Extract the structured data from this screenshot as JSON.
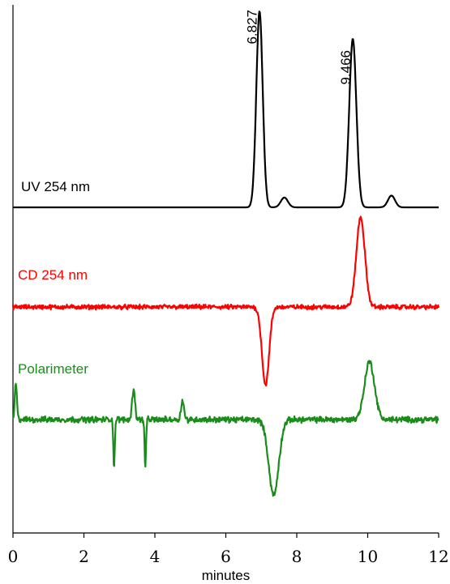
{
  "chart_data": {
    "type": "line",
    "xlabel": "minutes",
    "xlim": [
      0,
      12
    ],
    "x_ticks": [
      "0",
      "2",
      "4",
      "6",
      "8",
      "10",
      "12"
    ],
    "grid": false,
    "legend": "none",
    "peak_labels": [
      {
        "text": "6.827",
        "x": 6.827
      },
      {
        "text": "9.466",
        "x": 9.466
      }
    ],
    "series": [
      {
        "name": "UV 254 nm",
        "color": "#000000",
        "baseline": 0,
        "noise": 0,
        "peaks": [
          {
            "x": 6.95,
            "height": 1.0,
            "width": 0.09
          },
          {
            "x": 7.65,
            "height": 0.05,
            "width": 0.1
          },
          {
            "x": 9.58,
            "height": 0.86,
            "width": 0.1
          },
          {
            "x": 10.67,
            "height": 0.06,
            "width": 0.1
          }
        ]
      },
      {
        "name": "CD 254 nm",
        "color": "#ff0000",
        "baseline": 0,
        "noise": 0.035,
        "peaks": [
          {
            "x": 7.12,
            "height": -0.8,
            "width": 0.1
          },
          {
            "x": 9.8,
            "height": 0.92,
            "width": 0.12
          }
        ]
      },
      {
        "name": "Polarimeter",
        "color": "#1a8c1a",
        "baseline": 0,
        "noise": 0.05,
        "peaks": [
          {
            "x": 0.08,
            "height": 0.4,
            "width": 0.03
          },
          {
            "x": 2.85,
            "height": -0.55,
            "width": 0.02
          },
          {
            "x": 3.4,
            "height": 0.35,
            "width": 0.04
          },
          {
            "x": 3.73,
            "height": -0.55,
            "width": 0.02
          },
          {
            "x": 4.78,
            "height": 0.22,
            "width": 0.04
          },
          {
            "x": 7.35,
            "height": -0.85,
            "width": 0.14
          },
          {
            "x": 10.05,
            "height": 0.65,
            "width": 0.14
          }
        ]
      }
    ]
  }
}
